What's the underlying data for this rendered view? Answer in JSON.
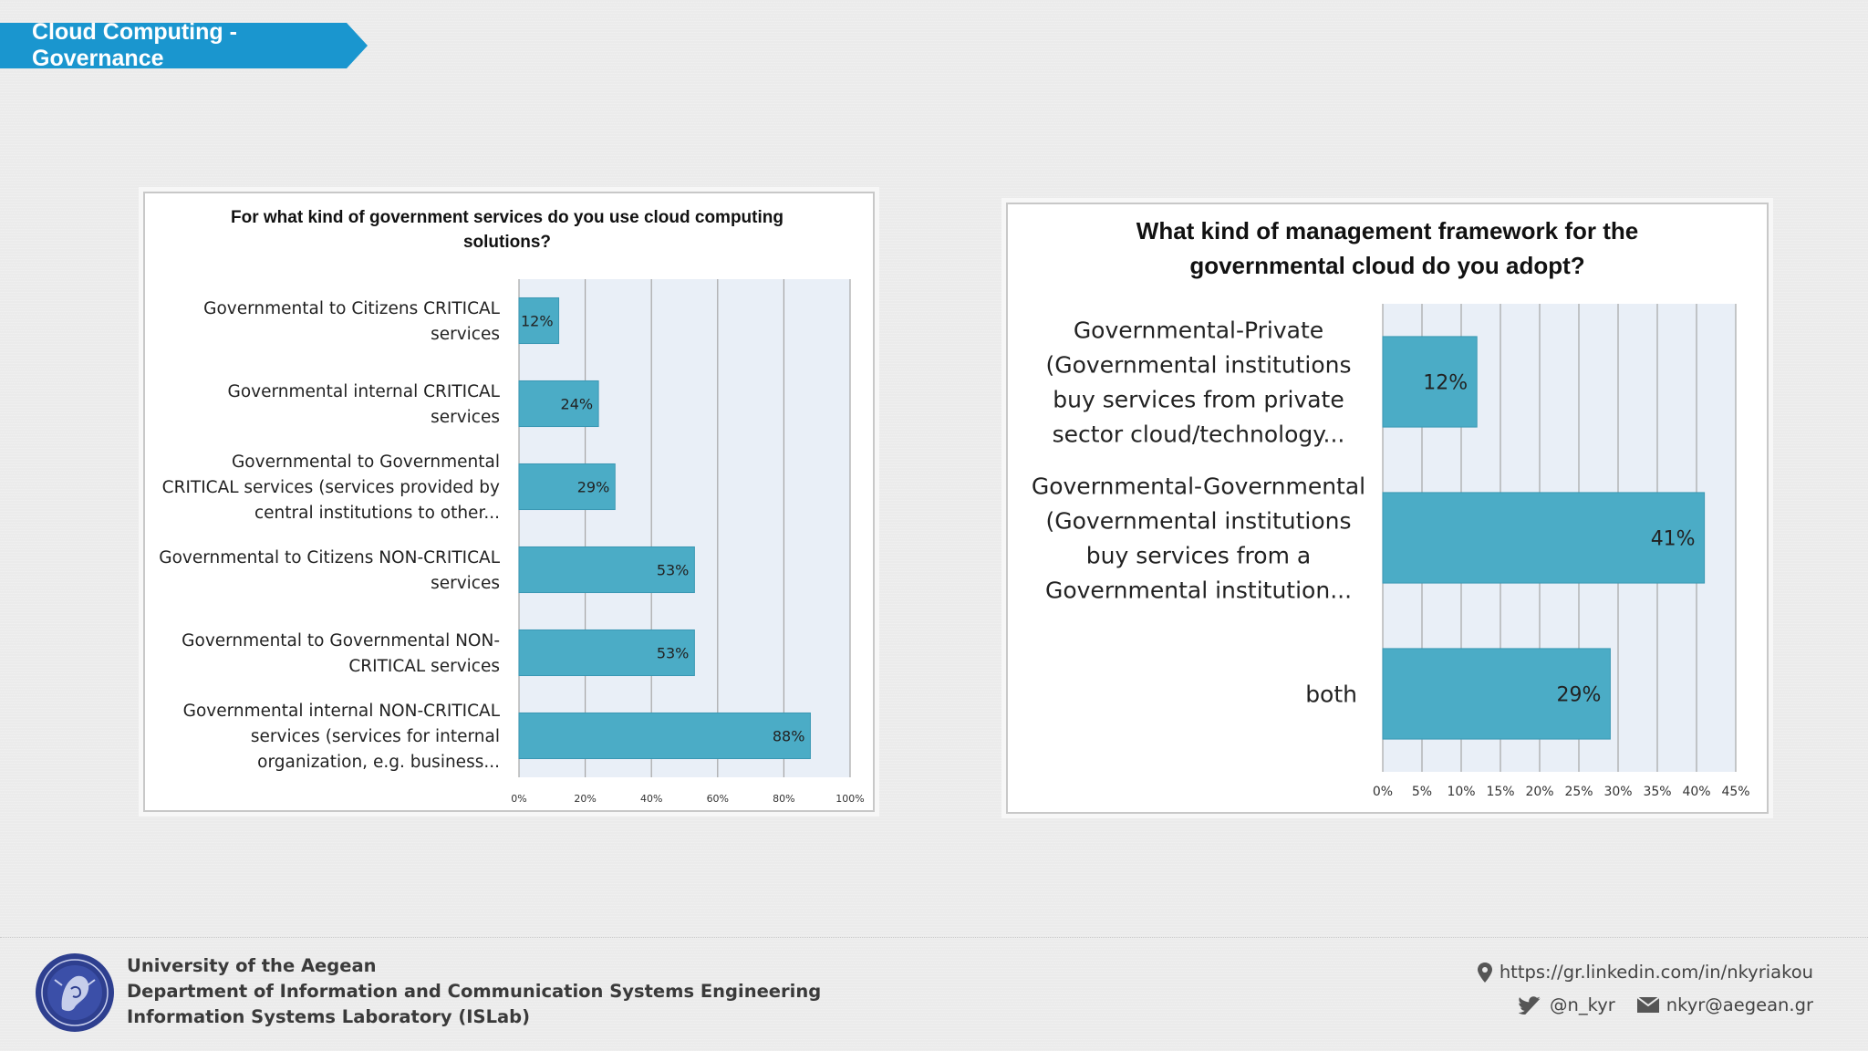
{
  "header": {
    "title": "Cloud Computing - Governance"
  },
  "chart_data": [
    {
      "type": "bar",
      "orientation": "horizontal",
      "title": "For what kind of government services do you use cloud computing solutions?",
      "title_lines": [
        "For what kind of government services do you use cloud computing",
        "solutions?"
      ],
      "categories": [
        "Governmental to Citizens CRITICAL services",
        "Governmental internal CRITICAL services",
        "Governmental to Governmental CRITICAL services (services provided by central institutions to other...",
        "Governmental to Citizens NON-CRITICAL services",
        "Governmental to Governmental NON-CRITICAL services",
        "Governmental internal NON-CRITICAL services (services for internal organization, e.g. business..."
      ],
      "category_lines": [
        [
          "Governmental to Citizens CRITICAL",
          "services"
        ],
        [
          "Governmental internal CRITICAL",
          "services"
        ],
        [
          "Governmental to Governmental",
          "CRITICAL services (services provided by",
          "central institutions to other..."
        ],
        [
          "Governmental to Citizens NON-CRITICAL",
          "services"
        ],
        [
          "Governmental to Governmental NON-",
          "CRITICAL services"
        ],
        [
          "Governmental internal NON-CRITICAL",
          "services (services for internal",
          "organization, e.g. business..."
        ]
      ],
      "values": [
        12,
        24,
        29,
        53,
        53,
        88
      ],
      "data_labels": [
        "12%",
        "24%",
        "29%",
        "53%",
        "53%",
        "88%"
      ],
      "xlim": [
        0,
        100
      ],
      "ticks": [
        0,
        20,
        40,
        60,
        80,
        100
      ],
      "tick_labels": [
        "0%",
        "20%",
        "40%",
        "60%",
        "80%",
        "100%"
      ],
      "grid": true,
      "bar_color": "#4bacc6"
    },
    {
      "type": "bar",
      "orientation": "horizontal",
      "title": "What kind of management framework for the governmental cloud do you adopt?",
      "title_lines": [
        "What kind of management framework for the",
        "governmental cloud do you adopt?"
      ],
      "categories": [
        "Governmental-Private (Governmental institutions buy services from private sector cloud/technology...",
        "Governmental-Governmental (Governmental institutions buy services from a Governmental institution...",
        "both"
      ],
      "category_lines": [
        [
          "Governmental-Private",
          "(Governmental institutions",
          "buy services from private",
          "sector cloud/technology..."
        ],
        [
          "Governmental-Governmental",
          "(Governmental institutions",
          "buy services from a",
          "Governmental institution..."
        ],
        [
          "both"
        ]
      ],
      "values": [
        12,
        41,
        29
      ],
      "data_labels": [
        "12%",
        "41%",
        "29%"
      ],
      "xlim": [
        0,
        45
      ],
      "ticks": [
        0,
        5,
        10,
        15,
        20,
        25,
        30,
        35,
        40,
        45
      ],
      "tick_labels": [
        "0%",
        "5%",
        "10%",
        "15%",
        "20%",
        "25%",
        "30%",
        "35%",
        "40%",
        "45%"
      ],
      "grid": true,
      "bar_color": "#4bacc6"
    }
  ],
  "footer": {
    "logo_icon": "university-seal-icon",
    "lines": [
      "University of the Aegean",
      "Department of Information and Communication Systems Engineering",
      "Information Systems Laboratory (ISLab)"
    ],
    "linkedin": "https://gr.linkedin.com/in/nkyriakou",
    "twitter": "@n_kyr",
    "email": "nkyr@aegean.gr"
  }
}
